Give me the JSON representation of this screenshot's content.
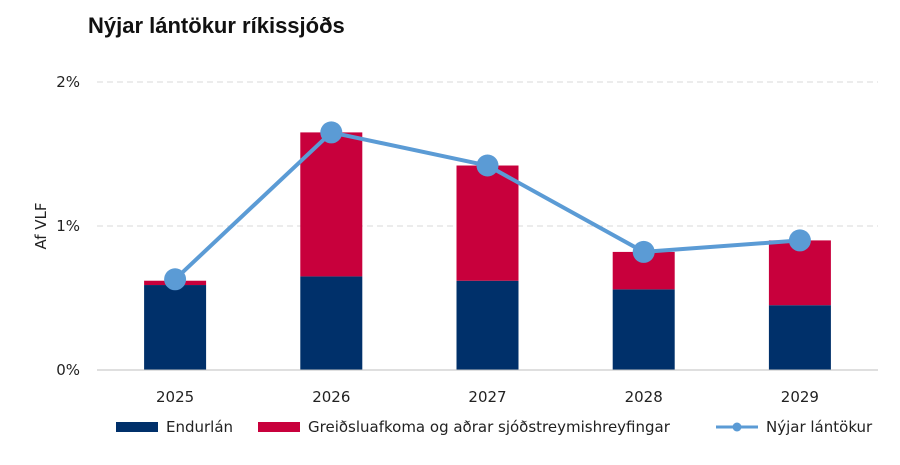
{
  "chart_data": {
    "type": "bar",
    "title": "Nýjar lántökur ríkissjóðs",
    "ylabel": "Af VLF",
    "xlabel": "",
    "categories": [
      "2025",
      "2026",
      "2027",
      "2028",
      "2029"
    ],
    "ylim": [
      0,
      2
    ],
    "yticks": [
      0,
      1,
      2
    ],
    "ytick_labels": [
      "0%",
      "1%",
      "2%"
    ],
    "grid": true,
    "legend": "bottom",
    "series": [
      {
        "name": "Endurlán",
        "kind": "bar",
        "stack": true,
        "color": "#00306a",
        "values": [
          0.59,
          0.65,
          0.62,
          0.56,
          0.45
        ]
      },
      {
        "name": "Greiðsluafkoma og aðrar sjóðstreymishreyfingar",
        "kind": "bar",
        "stack": true,
        "color": "#c8003c",
        "values": [
          0.03,
          1.0,
          0.8,
          0.26,
          0.45
        ]
      },
      {
        "name": "Nýjar lántökur",
        "kind": "line",
        "color": "#5b9bd5",
        "values": [
          0.63,
          1.65,
          1.42,
          0.82,
          0.9
        ]
      }
    ]
  }
}
